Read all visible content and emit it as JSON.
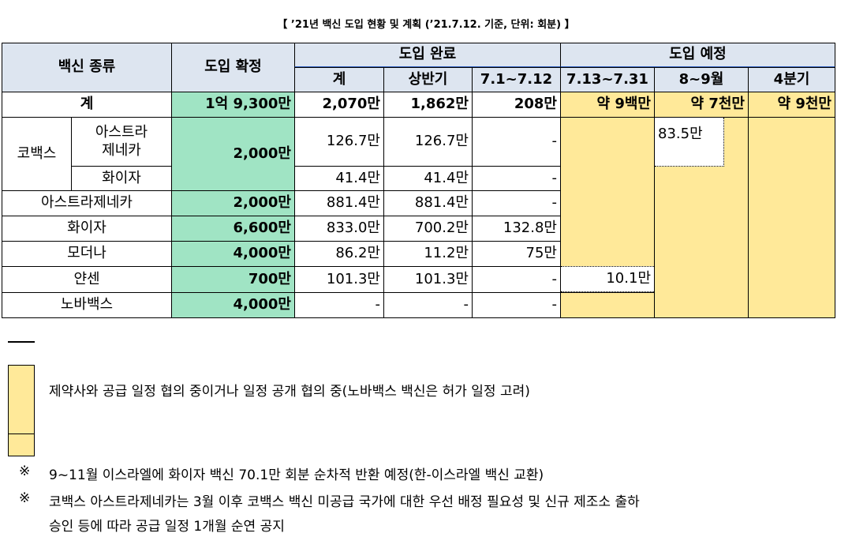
{
  "title": "【 ’21년 백신 도입 현황 및 계획 (’21.7.12. 기준, 단위: 회분) 】",
  "table": {
    "header": {
      "vaccine_type": "백신 종류",
      "confirmed": "도입 확정",
      "completed": {
        "label": "도입 완료",
        "columns": [
          "계",
          "상반기",
          "7.1~7.12"
        ]
      },
      "planned": {
        "label": "도입 예정",
        "columns": [
          "7.13~7.31",
          "8~9월",
          "4분기"
        ]
      }
    },
    "total_row": {
      "label": "계",
      "confirmed": "1억 9,300만",
      "completed": [
        "2,070만",
        "1,862만",
        "208만"
      ],
      "planned": [
        "약 9백만",
        "약 7천만",
        "약 9천만"
      ]
    },
    "covax": {
      "label": "코백스",
      "confirmed": "2,000만",
      "rows": [
        {
          "label": [
            "아스트라",
            "제네카"
          ],
          "completed": [
            "126.7만",
            "126.7만",
            "-"
          ],
          "planned_aug_sep": "83.5만"
        },
        {
          "label": "화이자",
          "completed": [
            "41.4만",
            "41.4만",
            "-"
          ]
        }
      ]
    },
    "rows": [
      {
        "label": "아스트라제네카",
        "confirmed": "2,000만",
        "completed": [
          "881.4만",
          "881.4만",
          "-"
        ]
      },
      {
        "label": "화이자",
        "confirmed": "6,600만",
        "completed": [
          "833.0만",
          "700.2만",
          "132.8만"
        ]
      },
      {
        "label": "모더나",
        "confirmed": "4,000만",
        "completed": [
          "86.2만",
          "11.2만",
          "75만"
        ]
      },
      {
        "label": "얀센",
        "confirmed": "700만",
        "completed": [
          "101.3만",
          "101.3만",
          "-"
        ],
        "planned_jul": "10.1만"
      },
      {
        "label": "노바백스",
        "confirmed": "4,000만",
        "completed": [
          "-",
          "-",
          "-"
        ]
      }
    ]
  },
  "legend": {
    "text": "제약사와 공급 일정 협의 중이거나 일정 공개 협의 중(노바백스 백신은 허가 일정 고려)"
  },
  "notes": [
    {
      "mark": "※",
      "lines": [
        "9~11월 이스라엘에 화이자 백신 70.1만 회분 순차적 반환 예정(한-이스라엘 백신 교환)"
      ]
    },
    {
      "mark": "※",
      "lines": [
        "코백스 아스트라제네카는 3월 이후 코백스 백신 미공급 국가에 대한 우선 배정 필요성 및 신규 제조소 출하",
        "승인 등에 따라 공급 일정 1개월 순연 공지"
      ]
    }
  ]
}
